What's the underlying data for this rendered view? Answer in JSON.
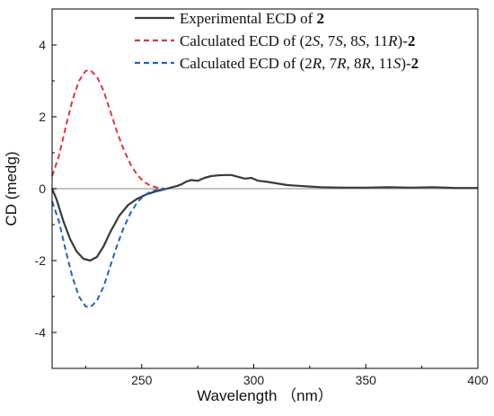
{
  "chart_data": {
    "type": "line",
    "xlabel": "Wavelength （nm）",
    "ylabel": "CD (medg)",
    "xlim": [
      210,
      400
    ],
    "ylim": [
      -5,
      5
    ],
    "x_ticks": [
      250,
      300,
      350,
      400
    ],
    "y_ticks": [
      -4,
      -2,
      0,
      2,
      4
    ],
    "grid": false,
    "legend_position": "top-right",
    "zero_line": true,
    "legend": [
      {
        "parts": [
          {
            "t": "Experimental ECD of "
          },
          {
            "t": "2",
            "bold": true
          }
        ]
      },
      {
        "parts": [
          {
            "t": "Calculated  ECD of (2"
          },
          {
            "t": "S",
            "italic": true
          },
          {
            "t": ", 7"
          },
          {
            "t": "S",
            "italic": true
          },
          {
            "t": ", 8"
          },
          {
            "t": "S",
            "italic": true
          },
          {
            "t": ", 11"
          },
          {
            "t": "R",
            "italic": true
          },
          {
            "t": ")-"
          },
          {
            "t": "2",
            "bold": true
          }
        ]
      },
      {
        "parts": [
          {
            "t": "Calculated  ECD of (2"
          },
          {
            "t": "R",
            "italic": true
          },
          {
            "t": ", 7"
          },
          {
            "t": "R",
            "italic": true
          },
          {
            "t": ", 8"
          },
          {
            "t": "R",
            "italic": true
          },
          {
            "t": ", 11"
          },
          {
            "t": "S",
            "italic": true
          },
          {
            "t": ")-"
          },
          {
            "t": "2",
            "bold": true
          }
        ]
      }
    ],
    "series": [
      {
        "color": "#3a3a3a",
        "style": "solid",
        "x": [
          210,
          212,
          215,
          218,
          221,
          224,
          227,
          230,
          233,
          236,
          240,
          244,
          248,
          252,
          256,
          260,
          263,
          266,
          268,
          270,
          272,
          275,
          278,
          281,
          284,
          287,
          290,
          293,
          296,
          299,
          302,
          305,
          310,
          315,
          320,
          325,
          330,
          340,
          350,
          360,
          370,
          380,
          390,
          400
        ],
        "y": [
          0.0,
          -0.3,
          -0.9,
          -1.4,
          -1.75,
          -1.95,
          -2.0,
          -1.9,
          -1.6,
          -1.2,
          -0.75,
          -0.45,
          -0.28,
          -0.16,
          -0.08,
          -0.02,
          0.03,
          0.08,
          0.13,
          0.2,
          0.24,
          0.22,
          0.3,
          0.35,
          0.37,
          0.38,
          0.38,
          0.33,
          0.28,
          0.3,
          0.22,
          0.2,
          0.15,
          0.1,
          0.08,
          0.06,
          0.04,
          0.03,
          0.03,
          0.04,
          0.03,
          0.04,
          0.02,
          0.02
        ]
      },
      {
        "color": "#e8323a",
        "style": "dashed",
        "x": [
          210,
          213,
          216,
          219,
          222,
          225,
          227,
          230,
          233,
          236,
          239,
          242,
          245,
          248,
          251,
          254,
          257,
          260,
          263
        ],
        "y": [
          0.35,
          0.9,
          1.7,
          2.45,
          3.0,
          3.28,
          3.3,
          3.12,
          2.72,
          2.15,
          1.58,
          1.08,
          0.68,
          0.38,
          0.19,
          0.08,
          0.03,
          0.0,
          0.0
        ]
      },
      {
        "color": "#1f5fd0",
        "style": "dashed",
        "x": [
          210,
          213,
          216,
          219,
          222,
          225,
          227,
          230,
          233,
          236,
          239,
          242,
          245,
          248,
          251,
          254,
          257,
          260,
          263
        ],
        "y": [
          -0.35,
          -0.9,
          -1.7,
          -2.45,
          -3.0,
          -3.28,
          -3.3,
          -3.12,
          -2.72,
          -2.15,
          -1.58,
          -1.08,
          -0.68,
          -0.38,
          -0.19,
          -0.08,
          -0.03,
          0.0,
          0.0
        ]
      }
    ]
  }
}
